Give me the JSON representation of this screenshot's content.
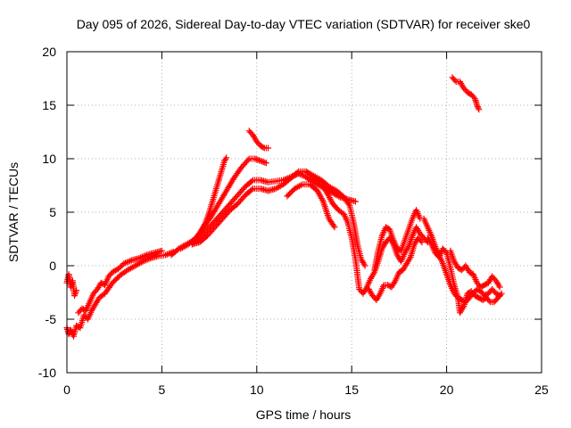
{
  "chart_data": {
    "type": "scatter",
    "title": "Day 095 of 2026, Sidereal Day-to-day VTEC variation (SDTVAR) for receiver ske0",
    "xlabel": "GPS time / hours",
    "ylabel": "SDTVAR / TECUs",
    "xlim": [
      0,
      25
    ],
    "ylim": [
      -10,
      20
    ],
    "xticks": [
      0,
      5,
      10,
      15,
      20,
      25
    ],
    "yticks": [
      -10,
      -5,
      0,
      5,
      10,
      15,
      20
    ],
    "grid": true,
    "marker": "+",
    "series": [
      {
        "name": "SDTVAR",
        "color": "#ff0000",
        "tracks": [
          [
            [
              0.0,
              -1.6
            ],
            [
              0.1,
              -0.8
            ],
            [
              0.2,
              -2.0
            ],
            [
              0.3,
              -1.4
            ],
            [
              0.4,
              -2.8
            ],
            [
              0.5,
              -2.3
            ]
          ],
          [
            [
              0.0,
              -5.8
            ],
            [
              0.1,
              -6.4
            ],
            [
              0.2,
              -6.0
            ],
            [
              0.35,
              -6.6
            ],
            [
              0.5,
              -5.6
            ],
            [
              0.7,
              -5.8
            ],
            [
              0.9,
              -4.6
            ],
            [
              1.1,
              -5.0
            ],
            [
              1.3,
              -4.2
            ],
            [
              1.5,
              -3.6
            ],
            [
              1.7,
              -3.0
            ],
            [
              2.0,
              -2.6
            ],
            [
              2.4,
              -1.6
            ],
            [
              2.8,
              -0.9
            ],
            [
              3.2,
              -0.4
            ],
            [
              3.6,
              0.0
            ],
            [
              4.0,
              0.4
            ],
            [
              4.4,
              0.7
            ],
            [
              4.8,
              0.9
            ],
            [
              5.2,
              1.0
            ],
            [
              5.6,
              1.3
            ]
          ],
          [
            [
              0.6,
              -4.4
            ],
            [
              0.8,
              -4.0
            ],
            [
              1.0,
              -4.2
            ],
            [
              1.2,
              -3.4
            ],
            [
              1.4,
              -2.6
            ],
            [
              1.6,
              -2.2
            ],
            [
              1.8,
              -1.6
            ],
            [
              2.0,
              -1.8
            ],
            [
              2.2,
              -1.0
            ],
            [
              2.4,
              -0.6
            ],
            [
              2.7,
              -0.3
            ],
            [
              3.0,
              0.2
            ],
            [
              3.4,
              0.5
            ],
            [
              3.8,
              0.7
            ],
            [
              4.2,
              1.0
            ],
            [
              4.6,
              1.2
            ],
            [
              5.0,
              1.4
            ]
          ],
          [
            [
              5.5,
              1.0
            ],
            [
              5.9,
              1.6
            ],
            [
              6.3,
              2.0
            ],
            [
              6.7,
              2.4
            ],
            [
              7.0,
              3.0
            ],
            [
              7.3,
              4.0
            ],
            [
              7.5,
              5.0
            ],
            [
              7.7,
              6.2
            ],
            [
              7.9,
              7.4
            ],
            [
              8.1,
              8.6
            ],
            [
              8.3,
              9.8
            ],
            [
              8.4,
              10.1
            ]
          ],
          [
            [
              6.0,
              1.6
            ],
            [
              6.4,
              2.0
            ],
            [
              6.8,
              2.6
            ],
            [
              7.2,
              3.6
            ],
            [
              7.6,
              4.6
            ],
            [
              8.0,
              5.8
            ],
            [
              8.4,
              7.0
            ],
            [
              8.8,
              8.2
            ],
            [
              9.2,
              9.2
            ],
            [
              9.6,
              10.0
            ],
            [
              9.9,
              10.0
            ],
            [
              10.2,
              9.8
            ],
            [
              10.5,
              9.6
            ]
          ],
          [
            [
              6.6,
              2.0
            ],
            [
              7.0,
              2.6
            ],
            [
              7.4,
              3.4
            ],
            [
              7.8,
              4.2
            ],
            [
              8.2,
              5.0
            ],
            [
              8.6,
              5.8
            ],
            [
              9.0,
              6.6
            ],
            [
              9.4,
              7.4
            ],
            [
              9.8,
              8.0
            ],
            [
              10.2,
              8.0
            ],
            [
              10.6,
              7.8
            ],
            [
              11.0,
              7.9
            ],
            [
              11.4,
              8.0
            ],
            [
              11.8,
              8.3
            ],
            [
              12.2,
              8.6
            ],
            [
              12.5,
              8.4
            ],
            [
              12.8,
              8.0
            ],
            [
              13.2,
              7.6
            ],
            [
              13.6,
              7.2
            ],
            [
              14.0,
              6.8
            ],
            [
              14.4,
              6.4
            ],
            [
              14.8,
              6.2
            ],
            [
              15.2,
              6.0
            ]
          ],
          [
            [
              6.6,
              2.0
            ],
            [
              7.0,
              2.2
            ],
            [
              7.4,
              2.8
            ],
            [
              7.8,
              3.6
            ],
            [
              8.2,
              4.4
            ],
            [
              8.6,
              5.2
            ],
            [
              9.0,
              5.8
            ],
            [
              9.4,
              6.6
            ],
            [
              9.8,
              7.2
            ],
            [
              10.2,
              7.2
            ],
            [
              10.6,
              7.0
            ],
            [
              11.0,
              7.2
            ],
            [
              11.4,
              7.6
            ],
            [
              11.8,
              8.2
            ],
            [
              12.2,
              8.8
            ],
            [
              12.6,
              8.8
            ],
            [
              13.0,
              8.4
            ],
            [
              13.4,
              8.0
            ],
            [
              13.8,
              7.4
            ],
            [
              14.2,
              7.0
            ],
            [
              14.6,
              6.4
            ],
            [
              14.9,
              5.6
            ],
            [
              15.1,
              4.0
            ],
            [
              15.3,
              2.0
            ],
            [
              15.5,
              0.6
            ],
            [
              15.7,
              0.0
            ]
          ],
          [
            [
              9.6,
              12.6
            ],
            [
              9.8,
              12.2
            ],
            [
              10.0,
              11.6
            ],
            [
              10.2,
              11.2
            ],
            [
              10.4,
              11.0
            ],
            [
              10.6,
              11.0
            ]
          ],
          [
            [
              11.6,
              6.5
            ],
            [
              12.0,
              7.2
            ],
            [
              12.4,
              7.6
            ],
            [
              12.8,
              7.6
            ],
            [
              13.2,
              7.0
            ],
            [
              13.5,
              6.0
            ],
            [
              13.8,
              4.4
            ],
            [
              14.1,
              3.6
            ]
          ],
          [
            [
              12.6,
              8.8
            ],
            [
              13.0,
              8.2
            ],
            [
              13.4,
              7.8
            ],
            [
              13.7,
              6.8
            ],
            [
              14.0,
              5.8
            ],
            [
              14.3,
              5.2
            ],
            [
              14.6,
              4.8
            ],
            [
              14.8,
              4.0
            ],
            [
              15.0,
              2.6
            ],
            [
              15.2,
              0.6
            ],
            [
              15.3,
              -0.8
            ],
            [
              15.4,
              -2.2
            ],
            [
              15.6,
              -2.6
            ],
            [
              15.8,
              -2.0
            ],
            [
              16.0,
              -1.2
            ],
            [
              16.2,
              -0.6
            ],
            [
              16.4,
              0.4
            ],
            [
              16.6,
              1.6
            ],
            [
              16.8,
              2.2
            ],
            [
              17.0,
              2.6
            ],
            [
              17.2,
              2.0
            ],
            [
              17.4,
              1.0
            ],
            [
              17.6,
              0.4
            ],
            [
              17.8,
              1.2
            ],
            [
              18.0,
              1.8
            ],
            [
              18.2,
              2.8
            ],
            [
              18.4,
              3.6
            ],
            [
              18.6,
              3.0
            ],
            [
              18.8,
              2.6
            ],
            [
              19.0,
              2.2
            ]
          ],
          [
            [
              15.9,
              -2.2
            ],
            [
              16.1,
              -2.8
            ],
            [
              16.3,
              -3.2
            ],
            [
              16.5,
              -2.6
            ],
            [
              16.7,
              -1.8
            ],
            [
              16.9,
              -1.8
            ],
            [
              17.1,
              -2.0
            ],
            [
              17.3,
              -1.4
            ],
            [
              17.5,
              -0.6
            ],
            [
              17.7,
              -0.4
            ],
            [
              17.9,
              0.2
            ],
            [
              18.1,
              0.8
            ],
            [
              18.3,
              2.0
            ],
            [
              18.5,
              2.6
            ],
            [
              18.7,
              2.2
            ]
          ],
          [
            [
              16.2,
              -0.4
            ],
            [
              16.4,
              1.4
            ],
            [
              16.6,
              2.8
            ],
            [
              16.8,
              3.6
            ],
            [
              17.0,
              3.4
            ],
            [
              17.2,
              2.4
            ],
            [
              17.4,
              1.6
            ],
            [
              17.6,
              1.4
            ],
            [
              17.8,
              2.4
            ],
            [
              18.0,
              3.4
            ],
            [
              18.2,
              4.4
            ],
            [
              18.4,
              5.2
            ],
            [
              18.6,
              4.4
            ]
          ],
          [
            [
              18.8,
              4.4
            ],
            [
              19.0,
              3.6
            ],
            [
              19.2,
              2.8
            ],
            [
              19.4,
              1.8
            ],
            [
              19.6,
              1.0
            ],
            [
              19.8,
              0.2
            ],
            [
              20.0,
              -0.8
            ],
            [
              20.2,
              -1.8
            ],
            [
              20.4,
              -2.6
            ],
            [
              20.6,
              -3.0
            ],
            [
              20.8,
              -3.2
            ],
            [
              21.0,
              -3.4
            ],
            [
              21.2,
              -3.0
            ],
            [
              21.4,
              -2.6
            ],
            [
              21.6,
              -2.2
            ],
            [
              21.8,
              -2.4
            ],
            [
              22.0,
              -2.8
            ],
            [
              22.2,
              -2.6
            ],
            [
              22.4,
              -2.2
            ],
            [
              22.6,
              -2.6
            ],
            [
              22.8,
              -2.8
            ]
          ],
          [
            [
              19.0,
              2.6
            ],
            [
              19.2,
              2.0
            ],
            [
              19.4,
              1.2
            ],
            [
              19.6,
              0.8
            ],
            [
              19.8,
              1.6
            ],
            [
              20.0,
              1.2
            ],
            [
              20.2,
              -0.2
            ],
            [
              20.4,
              -1.8
            ],
            [
              20.6,
              -3.0
            ],
            [
              20.7,
              -4.4
            ],
            [
              20.9,
              -3.8
            ],
            [
              21.1,
              -2.6
            ],
            [
              21.3,
              -2.4
            ],
            [
              21.5,
              -2.8
            ],
            [
              21.7,
              -3.0
            ],
            [
              21.9,
              -3.2
            ],
            [
              22.1,
              -3.0
            ],
            [
              22.3,
              -3.4
            ],
            [
              22.5,
              -3.4
            ],
            [
              22.7,
              -3.0
            ],
            [
              22.9,
              -2.6
            ]
          ],
          [
            [
              20.2,
              1.4
            ],
            [
              20.4,
              0.4
            ],
            [
              20.6,
              -0.2
            ],
            [
              20.8,
              -0.4
            ],
            [
              21.0,
              0.0
            ],
            [
              21.2,
              -0.6
            ],
            [
              21.4,
              -0.8
            ],
            [
              21.6,
              -1.6
            ],
            [
              21.8,
              -2.0
            ],
            [
              22.0,
              -1.8
            ],
            [
              22.2,
              -1.6
            ],
            [
              22.4,
              -1.0
            ],
            [
              22.6,
              -1.4
            ],
            [
              22.8,
              -2.0
            ]
          ],
          [
            [
              20.3,
              17.6
            ],
            [
              20.5,
              17.2
            ],
            [
              20.7,
              17.2
            ],
            [
              20.9,
              16.6
            ],
            [
              21.1,
              16.2
            ],
            [
              21.3,
              16.0
            ],
            [
              21.5,
              15.6
            ],
            [
              21.6,
              15.0
            ],
            [
              21.7,
              14.6
            ]
          ]
        ]
      }
    ]
  }
}
